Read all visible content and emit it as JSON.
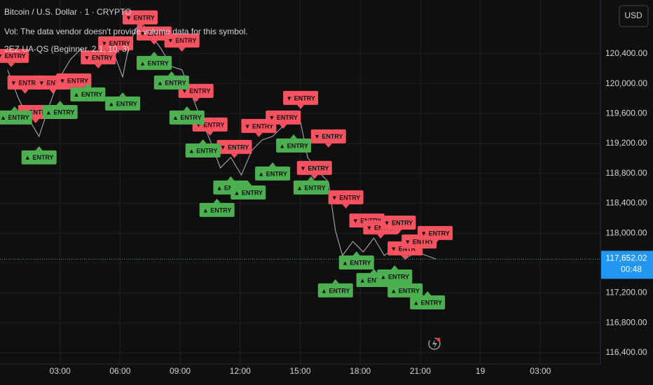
{
  "chart_data": {
    "type": "line",
    "title": "Bitcoin / U.S. Dollar · 1 · CRYPTO",
    "subtitle": "Vol: The data vendor doesn't provide volume data for this symbol.",
    "indicator": "2EZ UA-QS (Beginner, 2.1, 10, 3)",
    "currency": "USD",
    "color": "#b2b5be",
    "grid": true,
    "x": [
      0.38,
      0.91,
      1.43,
      1.95,
      2.47,
      3.0,
      3.52,
      4.04,
      4.56,
      5.09,
      5.61,
      6.13,
      6.48,
      7.0,
      7.53,
      8.05,
      8.57,
      9.09,
      9.44,
      9.97,
      10.49,
      11.01,
      11.53,
      12.06,
      12.58,
      13.1,
      13.62,
      14.15,
      14.67,
      15.02,
      15.37,
      15.89,
      16.41,
      16.76,
      17.11,
      17.63,
      18.15,
      18.68,
      19.2,
      19.72,
      20.24,
      20.77,
      21.29,
      21.81
    ],
    "values": [
      120185,
      119810,
      119529,
      119295,
      119716,
      120091,
      120325,
      120466,
      120278,
      120372,
      120466,
      120091,
      120559,
      120840,
      120653,
      120466,
      120231,
      120185,
      119950,
      119576,
      119248,
      118873,
      119014,
      118779,
      119107,
      119248,
      119295,
      119435,
      119576,
      119482,
      119014,
      118826,
      118686,
      118030,
      117702,
      117889,
      117749,
      117936,
      117702,
      117796,
      117655,
      117749,
      117702,
      117652
    ],
    "xlim": [
      0,
      30
    ],
    "xticks": [
      {
        "value": 3,
        "label": "03:00"
      },
      {
        "value": 6,
        "label": "06:00"
      },
      {
        "value": 9,
        "label": "09:00"
      },
      {
        "value": 12,
        "label": "12:00"
      },
      {
        "value": 15,
        "label": "15:00"
      },
      {
        "value": 18,
        "label": "18:00"
      },
      {
        "value": 21,
        "label": "21:00"
      },
      {
        "value": 24,
        "label": "19"
      },
      {
        "value": 27,
        "label": "03:00"
      }
    ],
    "ylim": [
      116250,
      121120
    ],
    "yticks": [
      {
        "value": 116400,
        "label": "116,400.00"
      },
      {
        "value": 116800,
        "label": "116,800.00"
      },
      {
        "value": 117200,
        "label": "117,200.00"
      },
      {
        "value": 117600,
        "label": "117,600.00"
      },
      {
        "value": 118000,
        "label": "118,000.00"
      },
      {
        "value": 118400,
        "label": "118,400.00"
      },
      {
        "value": 118800,
        "label": "118,800.00"
      },
      {
        "value": 119200,
        "label": "119,200.00"
      },
      {
        "value": 119600,
        "label": "119,600.00"
      },
      {
        "value": 120000,
        "label": "120,000.00"
      },
      {
        "value": 120400,
        "label": "120,400.00"
      }
    ],
    "last_price": {
      "value": 117652.02,
      "label": "117,652.02",
      "color": "#2196f3"
    },
    "countdown": "00:48",
    "signals": [
      {
        "x": 0.56,
        "y": 120372,
        "label": "▼ ENTRY",
        "color": "#f7525f"
      },
      {
        "x": 1.25,
        "y": 120016,
        "label": "▼ ENTRY",
        "color": "#f7525f"
      },
      {
        "x": 2.65,
        "y": 120016,
        "label": "▼ ENTRY",
        "color": "#f7525f"
      },
      {
        "x": 1.78,
        "y": 119622,
        "label": "▼ ENTRY",
        "color": "#f7525f"
      },
      {
        "x": 3.69,
        "y": 120044,
        "label": "▼ ENTRY",
        "color": "#f7525f"
      },
      {
        "x": 4.91,
        "y": 120353,
        "label": "▼ ENTRY",
        "color": "#f7525f"
      },
      {
        "x": 5.78,
        "y": 120541,
        "label": "▼ ENTRY",
        "color": "#f7525f"
      },
      {
        "x": 7.0,
        "y": 120887,
        "label": "▼ ENTRY",
        "color": "#f7525f"
      },
      {
        "x": 7.7,
        "y": 120672,
        "label": "▼ ENTRY",
        "color": "#f7525f"
      },
      {
        "x": 9.09,
        "y": 120578,
        "label": "▼ ENTRY",
        "color": "#f7525f"
      },
      {
        "x": 9.79,
        "y": 119904,
        "label": "▼ ENTRY",
        "color": "#f7525f"
      },
      {
        "x": 10.49,
        "y": 119454,
        "label": "▼ ENTRY",
        "color": "#f7525f"
      },
      {
        "x": 11.71,
        "y": 119154,
        "label": "▼ ENTRY",
        "color": "#f7525f"
      },
      {
        "x": 12.93,
        "y": 119435,
        "label": "▼ ENTRY",
        "color": "#f7525f"
      },
      {
        "x": 14.15,
        "y": 119548,
        "label": "▼ ENTRY",
        "color": "#f7525f"
      },
      {
        "x": 15.02,
        "y": 119810,
        "label": "▼ ENTRY",
        "color": "#f7525f"
      },
      {
        "x": 16.41,
        "y": 119295,
        "label": "▼ ENTRY",
        "color": "#f7525f"
      },
      {
        "x": 15.71,
        "y": 118873,
        "label": "▼ ENTRY",
        "color": "#f7525f"
      },
      {
        "x": 17.28,
        "y": 118480,
        "label": "▼ ENTRY",
        "color": "#f7525f"
      },
      {
        "x": 18.33,
        "y": 118170,
        "label": "▼ ENTRY",
        "color": "#f7525f"
      },
      {
        "x": 19.02,
        "y": 118077,
        "label": "▼ ENTRY",
        "color": "#f7525f"
      },
      {
        "x": 19.9,
        "y": 118142,
        "label": "▼ ENTRY",
        "color": "#f7525f"
      },
      {
        "x": 20.24,
        "y": 117796,
        "label": "▼ ENTRY",
        "color": "#f7525f"
      },
      {
        "x": 20.94,
        "y": 117889,
        "label": "▼ ENTRY",
        "color": "#f7525f"
      },
      {
        "x": 21.74,
        "y": 118002,
        "label": "▼ ENTRY",
        "color": "#f7525f"
      },
      {
        "x": 0.73,
        "y": 119548,
        "label": "▲ ENTRY",
        "color": "#4caf50"
      },
      {
        "x": 1.95,
        "y": 119014,
        "label": "▲ ENTRY",
        "color": "#4caf50"
      },
      {
        "x": 3.0,
        "y": 119622,
        "label": "▲ ENTRY",
        "color": "#4caf50"
      },
      {
        "x": 4.39,
        "y": 119857,
        "label": "▲ ENTRY",
        "color": "#4caf50"
      },
      {
        "x": 6.13,
        "y": 119735,
        "label": "▲ ENTRY",
        "color": "#4caf50"
      },
      {
        "x": 7.7,
        "y": 120278,
        "label": "▲ ENTRY",
        "color": "#4caf50"
      },
      {
        "x": 8.57,
        "y": 120016,
        "label": "▲ ENTRY",
        "color": "#4caf50"
      },
      {
        "x": 9.34,
        "y": 119548,
        "label": "▲ ENTRY",
        "color": "#4caf50"
      },
      {
        "x": 10.14,
        "y": 119107,
        "label": "▲ ENTRY",
        "color": "#4caf50"
      },
      {
        "x": 10.84,
        "y": 118311,
        "label": "▲ ENTRY",
        "color": "#4caf50"
      },
      {
        "x": 11.53,
        "y": 118611,
        "label": "▲ ENTRY",
        "color": "#4caf50"
      },
      {
        "x": 12.4,
        "y": 118545,
        "label": "▲ ENTRY",
        "color": "#4caf50"
      },
      {
        "x": 13.62,
        "y": 118798,
        "label": "▲ ENTRY",
        "color": "#4caf50"
      },
      {
        "x": 14.67,
        "y": 119173,
        "label": "▲ ENTRY",
        "color": "#4caf50"
      },
      {
        "x": 15.54,
        "y": 118611,
        "label": "▲ ENTRY",
        "color": "#4caf50"
      },
      {
        "x": 16.76,
        "y": 117234,
        "label": "▲ ENTRY",
        "color": "#4caf50"
      },
      {
        "x": 17.81,
        "y": 117608,
        "label": "▲ ENTRY",
        "color": "#4caf50"
      },
      {
        "x": 18.68,
        "y": 117374,
        "label": "▲ ENTRY",
        "color": "#4caf50"
      },
      {
        "x": 19.72,
        "y": 117421,
        "label": "▲ ENTRY",
        "color": "#4caf50"
      },
      {
        "x": 20.24,
        "y": 117234,
        "label": "▲ ENTRY",
        "color": "#4caf50"
      },
      {
        "x": 21.36,
        "y": 117074,
        "label": "▲ ENTRY",
        "color": "#4caf50"
      }
    ]
  }
}
